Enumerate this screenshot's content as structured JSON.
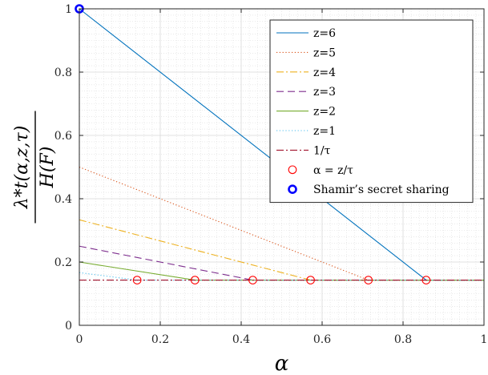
{
  "chart_data": {
    "type": "line",
    "title": "",
    "xlabel": "α",
    "ylabel": "λ*_t(α,z,τ) / H(F)",
    "ylabel_num": "λ*t(α,z,τ)",
    "ylabel_den": "H(F)",
    "xlim": [
      0,
      1
    ],
    "ylim": [
      0,
      1
    ],
    "x_ticks": [
      0,
      0.2,
      0.4,
      0.6,
      0.8,
      1
    ],
    "y_ticks": [
      0,
      0.2,
      0.4,
      0.6,
      0.8,
      1
    ],
    "x_tick_labels": [
      "0",
      "0.2",
      "0.4",
      "0.6",
      "0.8",
      "1"
    ],
    "y_tick_labels": [
      "0",
      "0.2",
      "0.4",
      "0.6",
      "0.8",
      "1"
    ],
    "grid": true,
    "minor_grid": true,
    "legend_position": "top-right",
    "series": [
      {
        "name": "z=6",
        "color": "#0072BD",
        "dash": "solid",
        "x": [
          0,
          0.857143,
          1
        ],
        "y": [
          1.0,
          0.142857,
          0.142857
        ]
      },
      {
        "name": "z=5",
        "color": "#D95319",
        "dash": "dotted",
        "x": [
          0,
          0.714286,
          1
        ],
        "y": [
          0.5,
          0.142857,
          0.142857
        ]
      },
      {
        "name": "z=4",
        "color": "#EDB120",
        "dash": "dashdot",
        "x": [
          0,
          0.571429,
          1
        ],
        "y": [
          0.333333,
          0.142857,
          0.142857
        ]
      },
      {
        "name": "z=3",
        "color": "#7E2F8E",
        "dash": "dashed",
        "x": [
          0,
          0.428571,
          1
        ],
        "y": [
          0.25,
          0.142857,
          0.142857
        ]
      },
      {
        "name": "z=2",
        "color": "#77AC30",
        "dash": "solid",
        "x": [
          0,
          0.285714,
          1
        ],
        "y": [
          0.2,
          0.142857,
          0.142857
        ]
      },
      {
        "name": "z=1",
        "color": "#4DBEEE",
        "dash": "dotted",
        "x": [
          0,
          0.142857,
          1
        ],
        "y": [
          0.166667,
          0.142857,
          0.142857
        ]
      },
      {
        "name": "1/τ",
        "color": "#A2142F",
        "dash": "dashdot",
        "x": [
          0,
          1
        ],
        "y": [
          0.142857,
          0.142857
        ]
      }
    ],
    "markers": [
      {
        "name": "α = z/τ",
        "color": "#FF0000",
        "shape": "circle-open",
        "x": [
          0.142857,
          0.285714,
          0.428571,
          0.571429,
          0.714286,
          0.857143
        ],
        "y": [
          0.142857,
          0.142857,
          0.142857,
          0.142857,
          0.142857,
          0.142857
        ]
      },
      {
        "name": "Shamir’s secret sharing",
        "color": "#0000FF",
        "shape": "circle-open-bold",
        "x": [
          0
        ],
        "y": [
          1
        ]
      }
    ]
  }
}
